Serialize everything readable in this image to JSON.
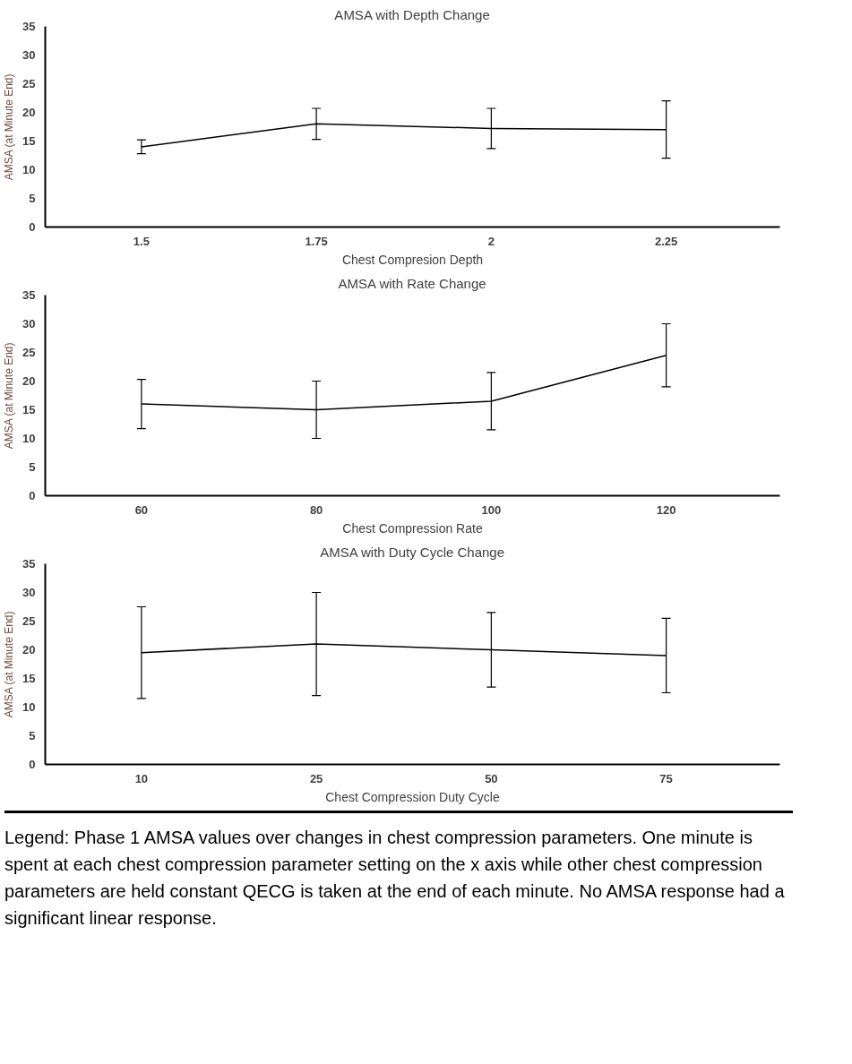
{
  "chart_data": [
    {
      "type": "line",
      "title": "AMSA with Depth Change",
      "xlabel": "Chest Compresion Depth",
      "ylabel": "AMSA (at Minute End)",
      "categories": [
        "1.5",
        "1.75",
        "2",
        "2.25"
      ],
      "values": [
        14,
        18,
        17.2,
        17
      ],
      "errors": [
        1.2,
        2.7,
        3.5,
        5
      ],
      "color": "#000000",
      "ylim": [
        0,
        35
      ],
      "yticks": [
        0,
        5,
        10,
        15,
        20,
        25,
        30,
        35
      ],
      "grid": false,
      "marker": "none"
    },
    {
      "type": "line",
      "title": "AMSA with Rate Change",
      "xlabel": "Chest Compression Rate",
      "ylabel": "AMSA (at Minute End)",
      "categories": [
        "60",
        "80",
        "100",
        "120"
      ],
      "values": [
        16,
        15,
        16.5,
        24.5
      ],
      "errors": [
        4.3,
        5,
        5,
        5.5
      ],
      "color": "#000000",
      "ylim": [
        0,
        35
      ],
      "yticks": [
        0,
        5,
        10,
        15,
        20,
        25,
        30,
        35
      ],
      "grid": false,
      "marker": "none"
    },
    {
      "type": "line",
      "title": "AMSA with Duty Cycle Change",
      "xlabel": "Chest Compression Duty Cycle",
      "ylabel": "AMSA (at Minute End)",
      "categories": [
        "10",
        "25",
        "50",
        "75"
      ],
      "values": [
        19.5,
        21,
        20,
        19
      ],
      "errors": [
        8,
        9,
        6.5,
        6.5
      ],
      "color": "#000000",
      "ylim": [
        0,
        35
      ],
      "yticks": [
        0,
        5,
        10,
        15,
        20,
        25,
        30,
        35
      ],
      "grid": false,
      "marker": "none",
      "annotations": [
        "Legend: Phase 1 AMSA values over changes in chest compression parameters.  One minute is spent at each chest compression parameter setting on the x axis while other chest compression parameters are held constant  QECG is taken at the end of each minute.  No AMSA response had a significant linear response."
      ]
    }
  ]
}
